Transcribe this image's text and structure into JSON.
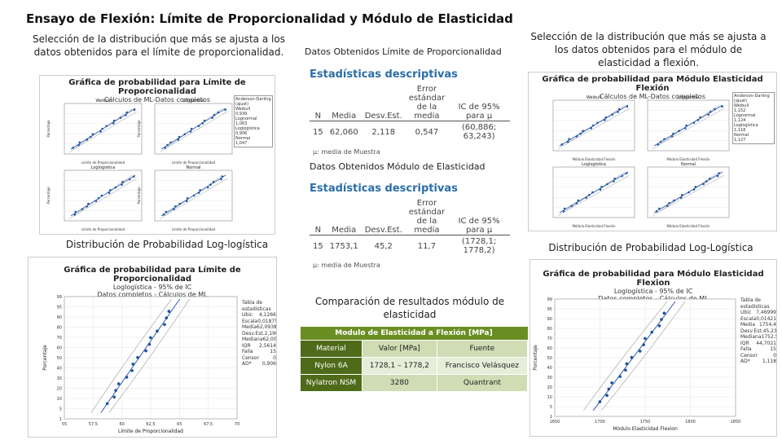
{
  "title": "Ensayo de Flexión: Límite de Proporcionalidad y Módulo de Elasticidad",
  "captions": {
    "left_top": "Selección de la distribución que más se ajusta a los datos obtenidos para el límite de proporcionalidad.",
    "right_top": "Selección de la distribución que más se ajusta a los datos obtenidos para el módulo de elasticidad a flexión.",
    "left_mid": "Distribución de Probabilidad Log-logística",
    "right_mid": "Distribución de Probabilidad Log-Logística",
    "center_top": "Datos Obtenidos Límite de Proporcionalidad",
    "center_mid": "Datos Obtenidos Módulo de Elasticidad",
    "center_cmp": "Comparación de resultados módulo de elasticidad"
  },
  "prob_plot_left": {
    "title": "Gráfica de probabilidad para Límite de Proporcionalidad",
    "sub": "Cálculos de ML-Datos completos",
    "panels": [
      "Weibull",
      "Lognormal",
      "Loglogística",
      "Normal"
    ],
    "ylabel": "Porcentaje",
    "xlabel": "Límite de Proporcionalidad",
    "legend": [
      "Anderson-Darling (ajust)",
      "Weibull",
      "0,939",
      "Lognormal",
      "1,063",
      "Loglogística",
      "0,906",
      "Normal",
      "1,047"
    ]
  },
  "prob_plot_right": {
    "title": "Gráfica de probabilidad para Módulo Elasticidad Flexión",
    "sub": "Cálculos de ML-Datos completos",
    "panels": [
      "Weibull",
      "Lognormal",
      "Loglogística",
      "Normal"
    ],
    "xlabel": "Módulo Elasticidad Flexión",
    "legend": [
      "Anderson-Darling (ajust)",
      "Weibull",
      "1,152",
      "Lognormal",
      "1,124",
      "Loglogística",
      "1,118",
      "Normal",
      "1,127"
    ]
  },
  "stats_lp": {
    "heading": "Estadísticas descriptivas",
    "headers": [
      "N",
      "Media",
      "Desv.Est.",
      "Error estándar de la media",
      "IC de 95% para μ"
    ],
    "row": [
      "15",
      "62,060",
      "2,118",
      "0,547",
      "(60,886; 63,243)"
    ],
    "note": "μ: media de Muestra"
  },
  "stats_me": {
    "heading": "Estadísticas descriptivas",
    "headers": [
      "N",
      "Media",
      "Desv.Est.",
      "Error estándar de la media",
      "IC de 95% para μ"
    ],
    "row": [
      "15",
      "1753,1",
      "45,2",
      "11,7",
      "(1728,1; 1778,2)"
    ],
    "note": "μ: media de Muestra"
  },
  "loglog_left": {
    "title": "Gráfica de probabilidad para Límite de Proporcionalidad",
    "sub1": "Loglogística - 95% de IC",
    "sub2": "Datos completos - Cálculos de ML",
    "ylabel": "Porcentaje",
    "xlabel": "Límite de Proporcionalidad",
    "xticks": [
      "55",
      "57,5",
      "60",
      "62,5",
      "65",
      "67,5",
      "70"
    ],
    "yticks": [
      "99",
      "95",
      "90",
      "80",
      "70",
      "60",
      "50",
      "40",
      "30",
      "20",
      "10",
      "5",
      "1"
    ],
    "legend": [
      [
        "Tabla de estadísticas",
        ""
      ],
      [
        "Ubic",
        "4,1266"
      ],
      [
        "Escala",
        "0,0187534"
      ],
      [
        "Media",
        "62,0938"
      ],
      [
        "Desv.Est.",
        "2,1905"
      ],
      [
        "Mediana",
        "62,0037"
      ],
      [
        "IQR",
        "2,5614"
      ],
      [
        "Falla",
        "15"
      ],
      [
        "Censor",
        "0"
      ],
      [
        "AD*",
        "0,906"
      ]
    ]
  },
  "loglog_right": {
    "title": "Gráfica de probabilidad para Módulo Elasticidad Flexion",
    "sub1": "Loglogística - 95% de IC",
    "sub2": "Datos completos - Cálculos de ML",
    "ylabel": "Porcentaje",
    "xlabel": "Módulo Elasticidad Flexion",
    "xticks": [
      "1650",
      "1700",
      "1750",
      "1800",
      "1850"
    ],
    "yticks": [
      "99",
      "95",
      "90",
      "80",
      "70",
      "60",
      "50",
      "40",
      "30",
      "20",
      "10",
      "5",
      "1"
    ],
    "legend": [
      [
        "Tabla de estadísticas",
        ""
      ],
      [
        "Ubic",
        "7,46999"
      ],
      [
        "Escala",
        "0,0142107"
      ],
      [
        "Media",
        "1754,4"
      ],
      [
        "Desv.Est.",
        "45,2335"
      ],
      [
        "Mediana",
        "1752,55"
      ],
      [
        "IQR",
        "44,7021"
      ],
      [
        "Falla",
        "15"
      ],
      [
        "Censor",
        "0"
      ],
      [
        "AD*",
        "1,118"
      ]
    ]
  },
  "comparison": {
    "header": "Modulo de Elasticidad a Flexión [MPa]",
    "col_headers": [
      "Material",
      "Valor [MPa]",
      "Fuente"
    ],
    "rows": [
      [
        "Nylon 6A",
        "1728,1 – 1778,2",
        "Francisco Velásquez"
      ],
      [
        "Nylatron NSM",
        "3280",
        "Quantrant"
      ]
    ]
  }
}
